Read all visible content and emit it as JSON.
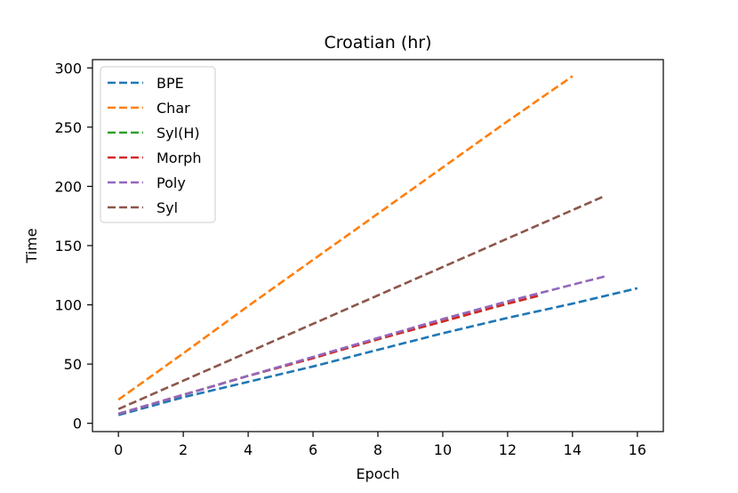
{
  "chart_data": {
    "type": "line",
    "title": "Croatian (hr)",
    "xlabel": "Epoch",
    "ylabel": "Time",
    "xlim": [
      -0.8,
      16.8
    ],
    "ylim": [
      -7,
      307
    ],
    "xticks": [
      "0",
      "2",
      "4",
      "6",
      "8",
      "10",
      "12",
      "14",
      "16"
    ],
    "yticks": [
      "0",
      "50",
      "100",
      "150",
      "200",
      "250",
      "300"
    ],
    "legend_position": "upper-left",
    "line_style": "dashed",
    "grid": false,
    "series": [
      {
        "name": "BPE",
        "color": "#1f77b4",
        "x": [
          0,
          2,
          4,
          6,
          8,
          10,
          12,
          14,
          16
        ],
        "y": [
          7,
          22,
          35,
          48,
          62,
          76,
          89,
          101,
          114
        ]
      },
      {
        "name": "Char",
        "color": "#ff7f0e",
        "x": [
          0,
          2,
          4,
          6,
          8,
          10,
          12,
          14
        ],
        "y": [
          20,
          59,
          99,
          138,
          177,
          216,
          255,
          293
        ]
      },
      {
        "name": "Syl(H)",
        "color": "#2ca02c",
        "x": [
          0,
          2,
          4,
          6,
          8,
          10,
          12,
          13
        ],
        "y": [
          8,
          24,
          40,
          55,
          71,
          86,
          101,
          108
        ]
      },
      {
        "name": "Morph",
        "color": "#d62728",
        "x": [
          0,
          2,
          4,
          6,
          8,
          10,
          12,
          13
        ],
        "y": [
          8,
          24,
          40,
          55,
          71,
          86,
          101,
          108
        ]
      },
      {
        "name": "Poly",
        "color": "#9467bd",
        "x": [
          0,
          2,
          4,
          6,
          8,
          10,
          12,
          14,
          15
        ],
        "y": [
          8,
          24,
          40,
          56,
          72,
          88,
          103,
          117,
          124
        ]
      },
      {
        "name": "Syl",
        "color": "#8c564b",
        "x": [
          0,
          2,
          4,
          6,
          8,
          10,
          12,
          14,
          15
        ],
        "y": [
          12,
          36,
          60,
          84,
          108,
          132,
          156,
          180,
          192
        ]
      }
    ]
  }
}
